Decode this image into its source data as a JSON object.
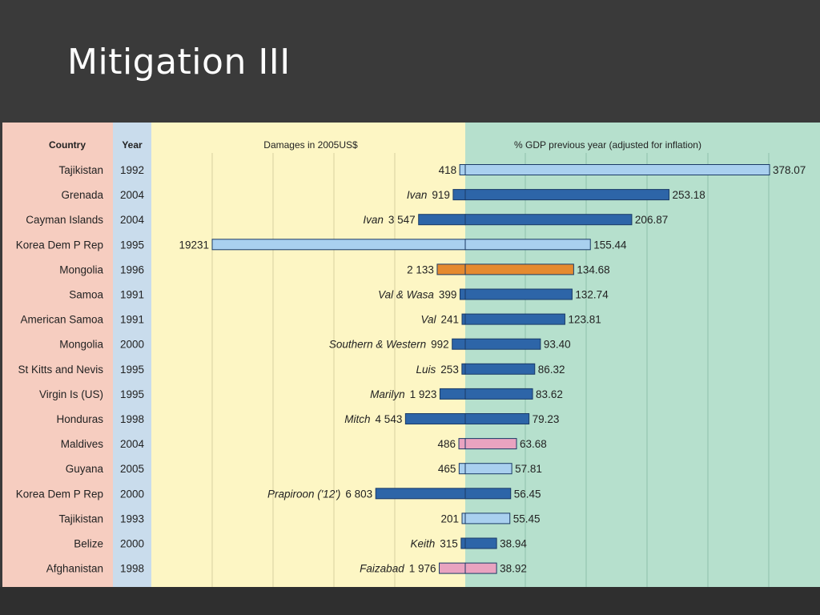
{
  "slide": {
    "title": "Mitigation III"
  },
  "chart_data": {
    "type": "bar",
    "column_headers": {
      "country": "Country",
      "year": "Year",
      "damages": "Damages in 2005US$",
      "gdp": "% GDP previous year (adjusted for inflation)"
    },
    "rows": [
      {
        "country": "Tajikistan",
        "year": "1992",
        "event": "",
        "damages_label": "418",
        "damages": 418,
        "gdp_label": "378.07",
        "gdp": 378.07,
        "style": "light"
      },
      {
        "country": "Grenada",
        "year": "2004",
        "event": "Ivan",
        "damages_label": "919",
        "damages": 919,
        "gdp_label": "253.18",
        "gdp": 253.18,
        "style": "dark"
      },
      {
        "country": "Cayman Islands",
        "year": "2004",
        "event": "Ivan",
        "damages_label": "3 547",
        "damages": 3547,
        "gdp_label": "206.87",
        "gdp": 206.87,
        "style": "dark"
      },
      {
        "country": "Korea Dem P Rep",
        "year": "1995",
        "event": "",
        "damages_label": "19231",
        "damages": 19231,
        "gdp_label": "155.44",
        "gdp": 155.44,
        "style": "light"
      },
      {
        "country": "Mongolia",
        "year": "1996",
        "event": "",
        "damages_label": "2 133",
        "damages": 2133,
        "gdp_label": "134.68",
        "gdp": 134.68,
        "style": "orange"
      },
      {
        "country": "Samoa",
        "year": "1991",
        "event": "Val & Wasa",
        "damages_label": "399",
        "damages": 399,
        "gdp_label": "132.74",
        "gdp": 132.74,
        "style": "dark"
      },
      {
        "country": "American Samoa",
        "year": "1991",
        "event": "Val",
        "damages_label": "241",
        "damages": 241,
        "gdp_label": "123.81",
        "gdp": 123.81,
        "style": "dark"
      },
      {
        "country": "Mongolia",
        "year": "2000",
        "event": "Southern & Western",
        "damages_label": "992",
        "damages": 992,
        "gdp_label": "93.40",
        "gdp": 93.4,
        "style": "dark"
      },
      {
        "country": "St Kitts and Nevis",
        "year": "1995",
        "event": "Luis",
        "damages_label": "253",
        "damages": 253,
        "gdp_label": "86.32",
        "gdp": 86.32,
        "style": "dark"
      },
      {
        "country": "Virgin Is (US)",
        "year": "1995",
        "event": "Marilyn",
        "damages_label": "1 923",
        "damages": 1923,
        "gdp_label": "83.62",
        "gdp": 83.62,
        "style": "dark"
      },
      {
        "country": "Honduras",
        "year": "1998",
        "event": "Mitch",
        "damages_label": "4 543",
        "damages": 4543,
        "gdp_label": "79.23",
        "gdp": 79.23,
        "style": "dark"
      },
      {
        "country": "Maldives",
        "year": "2004",
        "event": "",
        "damages_label": "486",
        "damages": 486,
        "gdp_label": "63.68",
        "gdp": 63.68,
        "style": "pink"
      },
      {
        "country": "Guyana",
        "year": "2005",
        "event": "",
        "damages_label": "465",
        "damages": 465,
        "gdp_label": "57.81",
        "gdp": 57.81,
        "style": "light"
      },
      {
        "country": "Korea Dem P Rep",
        "year": "2000",
        "event": "Prapiroon ('12')",
        "damages_label": "6 803",
        "damages": 6803,
        "gdp_label": "56.45",
        "gdp": 56.45,
        "style": "dark"
      },
      {
        "country": "Tajikistan",
        "year": "1993",
        "event": "",
        "damages_label": "201",
        "damages": 201,
        "gdp_label": "55.45",
        "gdp": 55.45,
        "style": "light"
      },
      {
        "country": "Belize",
        "year": "2000",
        "event": "Keith",
        "damages_label": "315",
        "damages": 315,
        "gdp_label": "38.94",
        "gdp": 38.94,
        "style": "dark"
      },
      {
        "country": "Afghanistan",
        "year": "1998",
        "event": "Faizabad",
        "damages_label": "1 976",
        "damages": 1976,
        "gdp_label": "38.92",
        "gdp": 38.92,
        "style": "pink"
      }
    ],
    "damages_range": [
      0,
      19231
    ],
    "gdp_range": [
      0,
      378.07
    ],
    "grid": true,
    "colors": {
      "country_panel": "#f6cdc0",
      "year_panel": "#c9dcec",
      "damages_panel": "#fdf6c4",
      "gdp_panel": "#b6e0cd",
      "bar_dark": "#2d65a8",
      "bar_light": "#a9d0ef",
      "bar_orange": "#e58a2f",
      "bar_pink": "#e9a3c0",
      "bar_edge": "#1a3a66",
      "slide_bg": "#3a3a3a",
      "title_text": "#ffffff"
    }
  }
}
